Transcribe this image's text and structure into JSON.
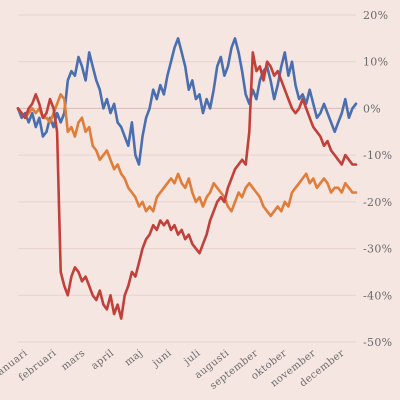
{
  "chart_data": {
    "type": "line",
    "title": "",
    "xlabel": "",
    "ylabel": "",
    "ylim": [
      -50,
      20
    ],
    "y_ticks": [
      "20%",
      "10%",
      "0%",
      "-10%",
      "-20%",
      "-30%",
      "-40%",
      "-50%"
    ],
    "y_tick_values": [
      20,
      10,
      0,
      -10,
      -20,
      -30,
      -40,
      -50
    ],
    "x_ticks": [
      "januari",
      "februari",
      "mars",
      "april",
      "maj",
      "juni",
      "juli",
      "augusti",
      "september",
      "oktober",
      "november",
      "december"
    ],
    "grid": "horizontal",
    "legend": "none",
    "series": [
      {
        "color": "#4a6fb0",
        "values": [
          0,
          -2,
          -1,
          -3,
          -1,
          -4,
          -2,
          -6,
          -5,
          -2,
          -4,
          -1,
          -3,
          -1,
          6,
          8,
          7,
          11,
          9,
          6,
          12,
          9,
          6,
          4,
          0,
          2,
          -1,
          1,
          -3,
          -4,
          -6,
          -8,
          -3,
          -10,
          -12,
          -6,
          -2,
          0,
          4,
          2,
          5,
          3,
          7,
          10,
          13,
          15,
          12,
          9,
          4,
          6,
          2,
          3,
          -1,
          2,
          0,
          4,
          9,
          11,
          7,
          9,
          13,
          15,
          12,
          8,
          3,
          1,
          4,
          2,
          6,
          8,
          9,
          6,
          2,
          5,
          9,
          12,
          7,
          10,
          5,
          2,
          3,
          1,
          4,
          1,
          -2,
          -1,
          1,
          -1,
          -3,
          -5,
          -3,
          -1,
          2,
          -2,
          0,
          1
        ]
      },
      {
        "color": "#e07d3a",
        "values": [
          0,
          -1,
          -2,
          -1,
          0,
          -1,
          0,
          -2,
          -2,
          -3,
          -1,
          1,
          3,
          2,
          -5,
          -4,
          -6,
          -3,
          -2,
          -5,
          -4,
          -8,
          -9,
          -11,
          -10,
          -9,
          -11,
          -13,
          -12,
          -14,
          -15,
          -17,
          -18,
          -19,
          -21,
          -20,
          -22,
          -21,
          -22,
          -19,
          -18,
          -17,
          -16,
          -15,
          -16,
          -14,
          -16,
          -17,
          -15,
          -18,
          -20,
          -19,
          -21,
          -19,
          -18,
          -16,
          -17,
          -18,
          -19,
          -21,
          -22,
          -20,
          -18,
          -19,
          -17,
          -16,
          -17,
          -18,
          -19,
          -21,
          -22,
          -23,
          -22,
          -21,
          -22,
          -20,
          -21,
          -18,
          -17,
          -16,
          -15,
          -14,
          -16,
          -15,
          -17,
          -16,
          -15,
          -16,
          -18,
          -17,
          -17,
          -18,
          -16,
          -17,
          -18,
          -18
        ]
      },
      {
        "color": "#c2403a",
        "values": [
          0,
          -1,
          -2,
          0,
          1,
          3,
          1,
          -2,
          -1,
          2,
          0,
          -5,
          -35,
          -38,
          -40,
          -36,
          -34,
          -35,
          -37,
          -36,
          -38,
          -40,
          -41,
          -39,
          -42,
          -43,
          -40,
          -44,
          -42,
          -45,
          -40,
          -38,
          -35,
          -36,
          -33,
          -30,
          -28,
          -27,
          -25,
          -26,
          -24,
          -25,
          -24,
          -26,
          -25,
          -27,
          -26,
          -28,
          -27,
          -29,
          -30,
          -31,
          -29,
          -27,
          -24,
          -22,
          -20,
          -19,
          -20,
          -17,
          -15,
          -13,
          -12,
          -11,
          -12,
          -5,
          12,
          8,
          9,
          6,
          10,
          9,
          7,
          8,
          6,
          4,
          2,
          0,
          -1,
          0,
          2,
          0,
          -2,
          -4,
          -5,
          -6,
          -8,
          -7,
          -9,
          -10,
          -11,
          -12,
          -10,
          -11,
          -12,
          -12
        ]
      }
    ]
  }
}
